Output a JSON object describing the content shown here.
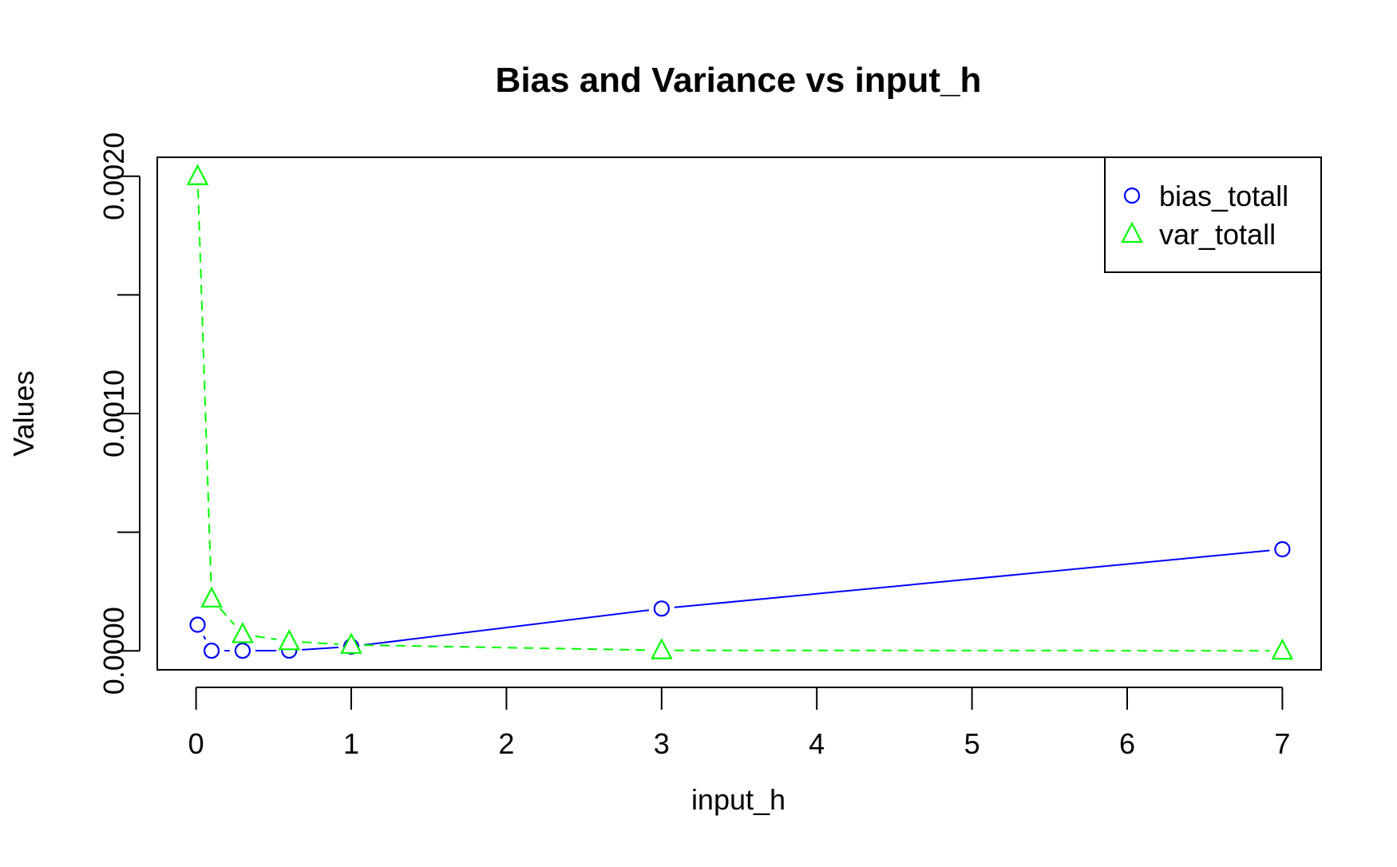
{
  "chart_data": {
    "type": "line",
    "title": "Bias and Variance vs input_h",
    "xlabel": "input_h",
    "ylabel": "Values",
    "xlim": [
      -0.25,
      7.25
    ],
    "ylim": [
      -8e-05,
      0.00208
    ],
    "x_ticks": [
      0,
      1,
      2,
      3,
      4,
      5,
      6,
      7
    ],
    "x_tick_labels": [
      "0",
      "1",
      "2",
      "3",
      "4",
      "5",
      "6",
      "7"
    ],
    "y_ticks": [
      0,
      0.0005,
      0.001,
      0.0015,
      0.002
    ],
    "y_tick_labels": [
      "0.0000",
      "",
      "0.0010",
      "",
      "0.0020"
    ],
    "grid": false,
    "legend_position": "top-right",
    "series": [
      {
        "name": "bias_totall",
        "color": "#0000ff",
        "marker": "circle",
        "line_style": "solid",
        "x": [
          0.01,
          0.1,
          0.3,
          0.6,
          1,
          3,
          7
        ],
        "y": [
          0.00011,
          5e-07,
          5e-07,
          1e-06,
          1.8e-05,
          0.000178,
          0.000428
        ]
      },
      {
        "name": "var_totall",
        "color": "#00ff00",
        "marker": "triangle",
        "line_style": "dashed",
        "x": [
          0.01,
          0.1,
          0.3,
          0.6,
          1,
          3,
          7
        ],
        "y": [
          0.002,
          0.00022,
          7e-05,
          4e-05,
          2.5e-05,
          2e-06,
          5e-07
        ]
      }
    ]
  }
}
